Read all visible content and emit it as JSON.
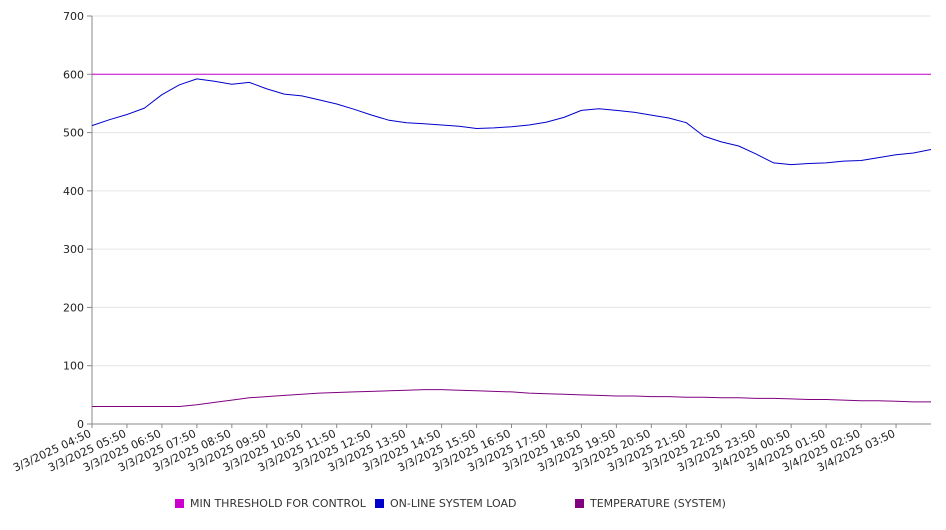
{
  "chart_data": {
    "type": "line",
    "title": "",
    "xlabel": "",
    "ylabel": "",
    "ylim": [
      0,
      700
    ],
    "yticks": [
      0,
      100,
      200,
      300,
      400,
      500,
      600,
      700
    ],
    "grid": true,
    "legend_position": "bottom",
    "x_tick_labels": [
      "3/3/2025 04:50",
      "3/3/2025 05:50",
      "3/3/2025 06:50",
      "3/3/2025 07:50",
      "3/3/2025 08:50",
      "3/3/2025 09:50",
      "3/3/2025 10:50",
      "3/3/2025 11:50",
      "3/3/2025 12:50",
      "3/3/2025 13:50",
      "3/3/2025 14:50",
      "3/3/2025 15:50",
      "3/3/2025 16:50",
      "3/3/2025 17:50",
      "3/3/2025 18:50",
      "3/3/2025 19:50",
      "3/3/2025 20:50",
      "3/3/2025 21:50",
      "3/3/2025 22:50",
      "3/3/2025 23:50",
      "3/4/2025 00:50",
      "3/4/2025 01:50",
      "3/4/2025 02:50",
      "3/4/2025 03:50"
    ],
    "x": [
      "3/3/2025 04:50",
      "3/3/2025 05:20",
      "3/3/2025 05:50",
      "3/3/2025 06:20",
      "3/3/2025 06:50",
      "3/3/2025 07:20",
      "3/3/2025 07:50",
      "3/3/2025 08:20",
      "3/3/2025 08:50",
      "3/3/2025 09:20",
      "3/3/2025 09:50",
      "3/3/2025 10:20",
      "3/3/2025 10:50",
      "3/3/2025 11:20",
      "3/3/2025 11:50",
      "3/3/2025 12:20",
      "3/3/2025 12:50",
      "3/3/2025 13:20",
      "3/3/2025 13:50",
      "3/3/2025 14:20",
      "3/3/2025 14:50",
      "3/3/2025 15:20",
      "3/3/2025 15:50",
      "3/3/2025 16:20",
      "3/3/2025 16:50",
      "3/3/2025 17:20",
      "3/3/2025 17:50",
      "3/3/2025 18:20",
      "3/3/2025 18:50",
      "3/3/2025 19:20",
      "3/3/2025 19:50",
      "3/3/2025 20:20",
      "3/3/2025 20:50",
      "3/3/2025 21:20",
      "3/3/2025 21:50",
      "3/3/2025 22:20",
      "3/3/2025 22:50",
      "3/3/2025 23:20",
      "3/3/2025 23:50",
      "3/4/2025 00:20",
      "3/4/2025 00:50",
      "3/4/2025 01:20",
      "3/4/2025 01:50",
      "3/4/2025 02:20",
      "3/4/2025 02:50",
      "3/4/2025 03:20",
      "3/4/2025 03:50",
      "3/4/2025 04:20",
      "3/4/2025 04:50"
    ],
    "series": [
      {
        "name": "MIN THRESHOLD FOR CONTROL",
        "color": "#cc00cc",
        "values": [
          600,
          600,
          600,
          600,
          600,
          600,
          600,
          600,
          600,
          600,
          600,
          600,
          600,
          600,
          600,
          600,
          600,
          600,
          600,
          600,
          600,
          600,
          600,
          600,
          600,
          600,
          600,
          600,
          600,
          600,
          600,
          600,
          600,
          600,
          600,
          600,
          600,
          600,
          600,
          600,
          600,
          600,
          600,
          600,
          600,
          600,
          600,
          600,
          600
        ]
      },
      {
        "name": "ON-LINE SYSTEM LOAD",
        "color": "#0000cc",
        "values": [
          512,
          522,
          531,
          542,
          565,
          582,
          592,
          588,
          583,
          586,
          575,
          566,
          563,
          556,
          549,
          540,
          530,
          521,
          517,
          515,
          513,
          511,
          507,
          508,
          510,
          513,
          518,
          526,
          538,
          541,
          538,
          535,
          530,
          525,
          517,
          494,
          484,
          477,
          463,
          448,
          445,
          447,
          448,
          451,
          452,
          457,
          462,
          465,
          471
        ]
      },
      {
        "name": "TEMPERATURE (SYSTEM)",
        "color": "#800080",
        "values": [
          30,
          30,
          30,
          30,
          30,
          30,
          33,
          37,
          41,
          45,
          47,
          49,
          51,
          53,
          54,
          55,
          56,
          57,
          58,
          59,
          59,
          58,
          57,
          56,
          55,
          53,
          52,
          51,
          50,
          49,
          48,
          48,
          47,
          47,
          46,
          46,
          45,
          45,
          44,
          44,
          43,
          42,
          42,
          41,
          40,
          40,
          39,
          38,
          38
        ]
      }
    ]
  }
}
